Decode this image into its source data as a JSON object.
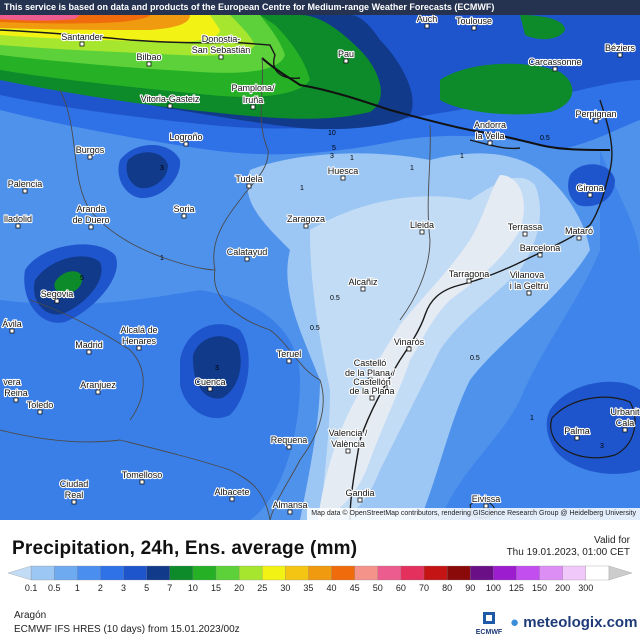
{
  "banner": "This service is based on data and products of the European Centre for Medium-range Weather Forecasts (ECMWF)",
  "attribution": "Map data © OpenStreetMap contributors, rendering GIScience Research Group @ Heidelberg University",
  "title": "Precipitation, 24h, Ens. average (mm)",
  "valid_label": "Valid for",
  "valid_time": "Thu 19.01.2023, 01:00 CET",
  "region": "Aragón",
  "model": "ECMWF IFS HRES  (10 days)  from  15.01.2023/00z",
  "logo_ecmwf": "ECMWF",
  "logo_meteologix": "meteologix.com",
  "legend": {
    "ticks": [
      "0.1",
      "0.5",
      "1",
      "2",
      "3",
      "5",
      "7",
      "10",
      "15",
      "20",
      "25",
      "30",
      "35",
      "40",
      "45",
      "50",
      "60",
      "70",
      "80",
      "90",
      "100",
      "125",
      "150",
      "200",
      "300"
    ],
    "colors": [
      "#c3dcf6",
      "#9cc6f3",
      "#6eaaf0",
      "#4a8ff0",
      "#2f72e8",
      "#1f55cc",
      "#113a8a",
      "#0d8a2a",
      "#25b025",
      "#5cd13a",
      "#a6e62e",
      "#f2f215",
      "#f5c513",
      "#f09a10",
      "#ef6b0c",
      "#f3938a",
      "#ec5c8e",
      "#e3305c",
      "#c41414",
      "#8a0a0a",
      "#6a0f86",
      "#9c1dd0",
      "#c34ef0",
      "#dd8ef5",
      "#f0c8fa",
      "#ffffff",
      "#cccccc"
    ]
  },
  "cities": [
    {
      "name": "Auch"
    },
    {
      "name": "Toulouse"
    },
    {
      "name": "Béziers"
    },
    {
      "name": "Santander"
    },
    {
      "name": "Bilbao"
    },
    {
      "name": "Donostia-"
    },
    {
      "name": "San Sebastián"
    },
    {
      "name": "Pau"
    },
    {
      "name": "Carcassonne"
    },
    {
      "name": "Vitoria-Gasteiz"
    },
    {
      "name": "Pamplona/"
    },
    {
      "name": "Iruña"
    },
    {
      "name": "Perpignan"
    },
    {
      "name": "Andorra"
    },
    {
      "name": "la Vella"
    },
    {
      "name": "Logroño"
    },
    {
      "name": "Burgos"
    },
    {
      "name": "Palencia"
    },
    {
      "name": "Tudela"
    },
    {
      "name": "Huesca"
    },
    {
      "name": "Girona"
    },
    {
      "name": "Aranda"
    },
    {
      "name": "de Duero"
    },
    {
      "name": "Soria"
    },
    {
      "name": "lladolid"
    },
    {
      "name": "Zaragoza"
    },
    {
      "name": "Lleida"
    },
    {
      "name": "Terrassa"
    },
    {
      "name": "Mataró"
    },
    {
      "name": "Barcelona"
    },
    {
      "name": "Calatayud"
    },
    {
      "name": "Tarragona"
    },
    {
      "name": "Vilanova"
    },
    {
      "name": "i la Geltrú"
    },
    {
      "name": "Segovia"
    },
    {
      "name": "Alcañiz"
    },
    {
      "name": "Ávila"
    },
    {
      "name": "Alcalá de"
    },
    {
      "name": "Henares"
    },
    {
      "name": "Madrid"
    },
    {
      "name": "Vinaròs"
    },
    {
      "name": "Teruel"
    },
    {
      "name": "Castelló"
    },
    {
      "name": "de la Plana /"
    },
    {
      "name": "Castellón"
    },
    {
      "name": "de la Plana"
    },
    {
      "name": "vera"
    },
    {
      "name": "Reina"
    },
    {
      "name": "Aranjuez"
    },
    {
      "name": "Cuenca"
    },
    {
      "name": "Toledo"
    },
    {
      "name": "Urbanit"
    },
    {
      "name": "Cala"
    },
    {
      "name": "Palma"
    },
    {
      "name": "Valencia /"
    },
    {
      "name": "València"
    },
    {
      "name": "Requena"
    },
    {
      "name": "Ciudad"
    },
    {
      "name": "Real"
    },
    {
      "name": "Tomelloso"
    },
    {
      "name": "Albacete"
    },
    {
      "name": "Almansa"
    },
    {
      "name": "Gandia"
    },
    {
      "name": "Eivissa"
    }
  ],
  "contour_labels": [
    "10",
    "5",
    "3",
    "1",
    "1",
    "1",
    "0.5",
    "1",
    "3",
    "5",
    "3",
    "1",
    "0.5",
    "1",
    "3",
    "1",
    "0.5",
    "0.5"
  ]
}
